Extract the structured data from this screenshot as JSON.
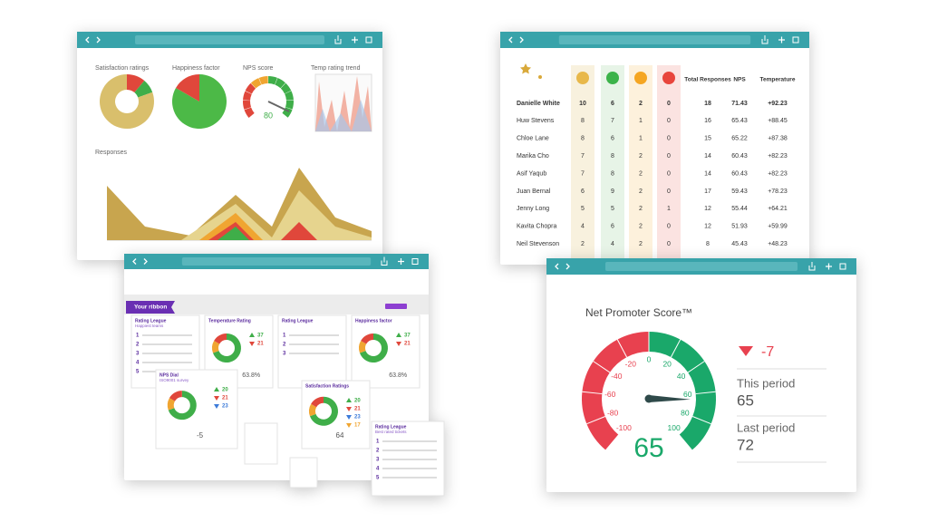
{
  "dashboard": {
    "panels": [
      "Satisfaction ratings",
      "Happiness factor",
      "NPS score",
      "Temp rating trend"
    ],
    "nps_value": 80,
    "responses_title": "Responses"
  },
  "leaderboard": {
    "columns": [
      "Total Responses",
      "NPS",
      "Temperature"
    ],
    "rows": [
      [
        "Danielle White",
        10,
        6,
        2,
        0,
        18,
        71.43,
        "+92.23"
      ],
      [
        "Huw Stevens",
        8,
        7,
        1,
        0,
        16,
        65.43,
        "+88.45"
      ],
      [
        "Chloe Lane",
        8,
        6,
        1,
        0,
        15,
        65.22,
        "+87.38"
      ],
      [
        "Marika Cho",
        7,
        8,
        2,
        0,
        14,
        60.43,
        "+82.23"
      ],
      [
        "Asif Yaqub",
        7,
        8,
        2,
        0,
        14,
        60.43,
        "+82.23"
      ],
      [
        "Juan Bernal",
        6,
        9,
        2,
        0,
        17,
        59.43,
        "+78.23"
      ],
      [
        "Jenny Long",
        5,
        5,
        2,
        1,
        12,
        55.44,
        "+64.21"
      ],
      [
        "Kavita Chopra",
        4,
        6,
        2,
        0,
        12,
        51.93,
        "+59.99"
      ],
      [
        "Neil Stevenson",
        2,
        4,
        2,
        0,
        8,
        45.43,
        "+48.23"
      ]
    ]
  },
  "ribbon": {
    "title": "Your ribbon",
    "cards": [
      {
        "title": "Rating League",
        "subtitle": "Happiest teams",
        "ranks": [
          1,
          2,
          3,
          4,
          5
        ]
      },
      {
        "title": "Temperature Rating",
        "stats": [
          37,
          21
        ],
        "percent": "63.8%"
      },
      {
        "title": "Rating League",
        "ranks": [
          1,
          2,
          3
        ]
      },
      {
        "title": "Happiness factor",
        "stats": [
          37,
          21
        ],
        "percent": "63.8%"
      }
    ],
    "floating": [
      {
        "title": "NPS Dial",
        "subtitle": "ISO9001 survey",
        "stats": [
          20,
          21,
          23
        ],
        "score": -5
      },
      {
        "title": "Satisfaction Ratings",
        "stats": [
          20,
          21,
          23,
          17
        ],
        "score": 64
      },
      {
        "title": "Rating League",
        "subtitle": "Best rated tickets",
        "ranks": [
          1,
          2,
          3,
          4,
          5
        ]
      }
    ]
  },
  "nps": {
    "title": "Net Promoter Score™",
    "ticks": [
      -100,
      -80,
      -60,
      -40,
      -20,
      0,
      20,
      40,
      60,
      80,
      100
    ],
    "value": 65,
    "change": -7,
    "this_period_label": "This period",
    "this_period": 65,
    "last_period_label": "Last period",
    "last_period": 72
  }
}
